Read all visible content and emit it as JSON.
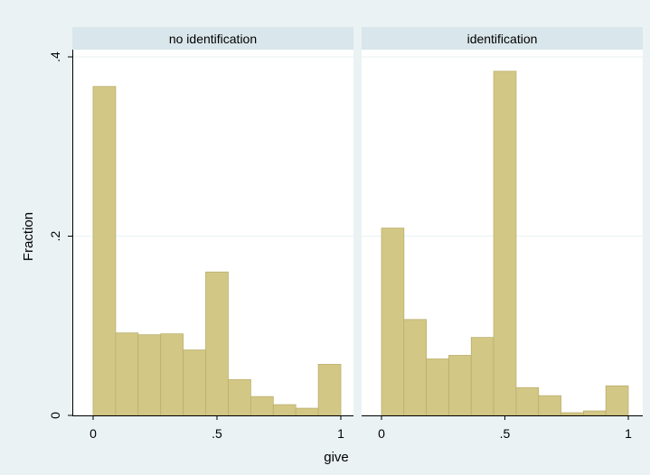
{
  "chart_data": {
    "type": "bar",
    "histogram": true,
    "xlabel": "give",
    "ylabel": "Fraction",
    "xlim": [
      -0.1,
      1.03
    ],
    "ylim": [
      0,
      0.4
    ],
    "x_ticks": [
      0,
      0.5,
      1
    ],
    "x_tick_labels": [
      "0",
      ".5",
      "1"
    ],
    "y_ticks": [
      0,
      0.2,
      0.4
    ],
    "y_tick_labels": [
      "0",
      ".2",
      ".4"
    ],
    "bin_edges": [
      0,
      0.0909,
      0.1818,
      0.2727,
      0.3636,
      0.4545,
      0.5455,
      0.6364,
      0.7273,
      0.8182,
      0.9091,
      1.0
    ],
    "grid": true,
    "bar_color": "#d3c785",
    "bar_edge_color": "#bbaf6e",
    "panels": [
      {
        "title": "no identification",
        "values": [
          0.367,
          0.092,
          0.09,
          0.091,
          0.073,
          0.16,
          0.04,
          0.021,
          0.012,
          0.008,
          0.057
        ]
      },
      {
        "title": "identification",
        "values": [
          0.209,
          0.107,
          0.063,
          0.067,
          0.087,
          0.384,
          0.031,
          0.022,
          0.003,
          0.005,
          0.033
        ]
      }
    ]
  }
}
